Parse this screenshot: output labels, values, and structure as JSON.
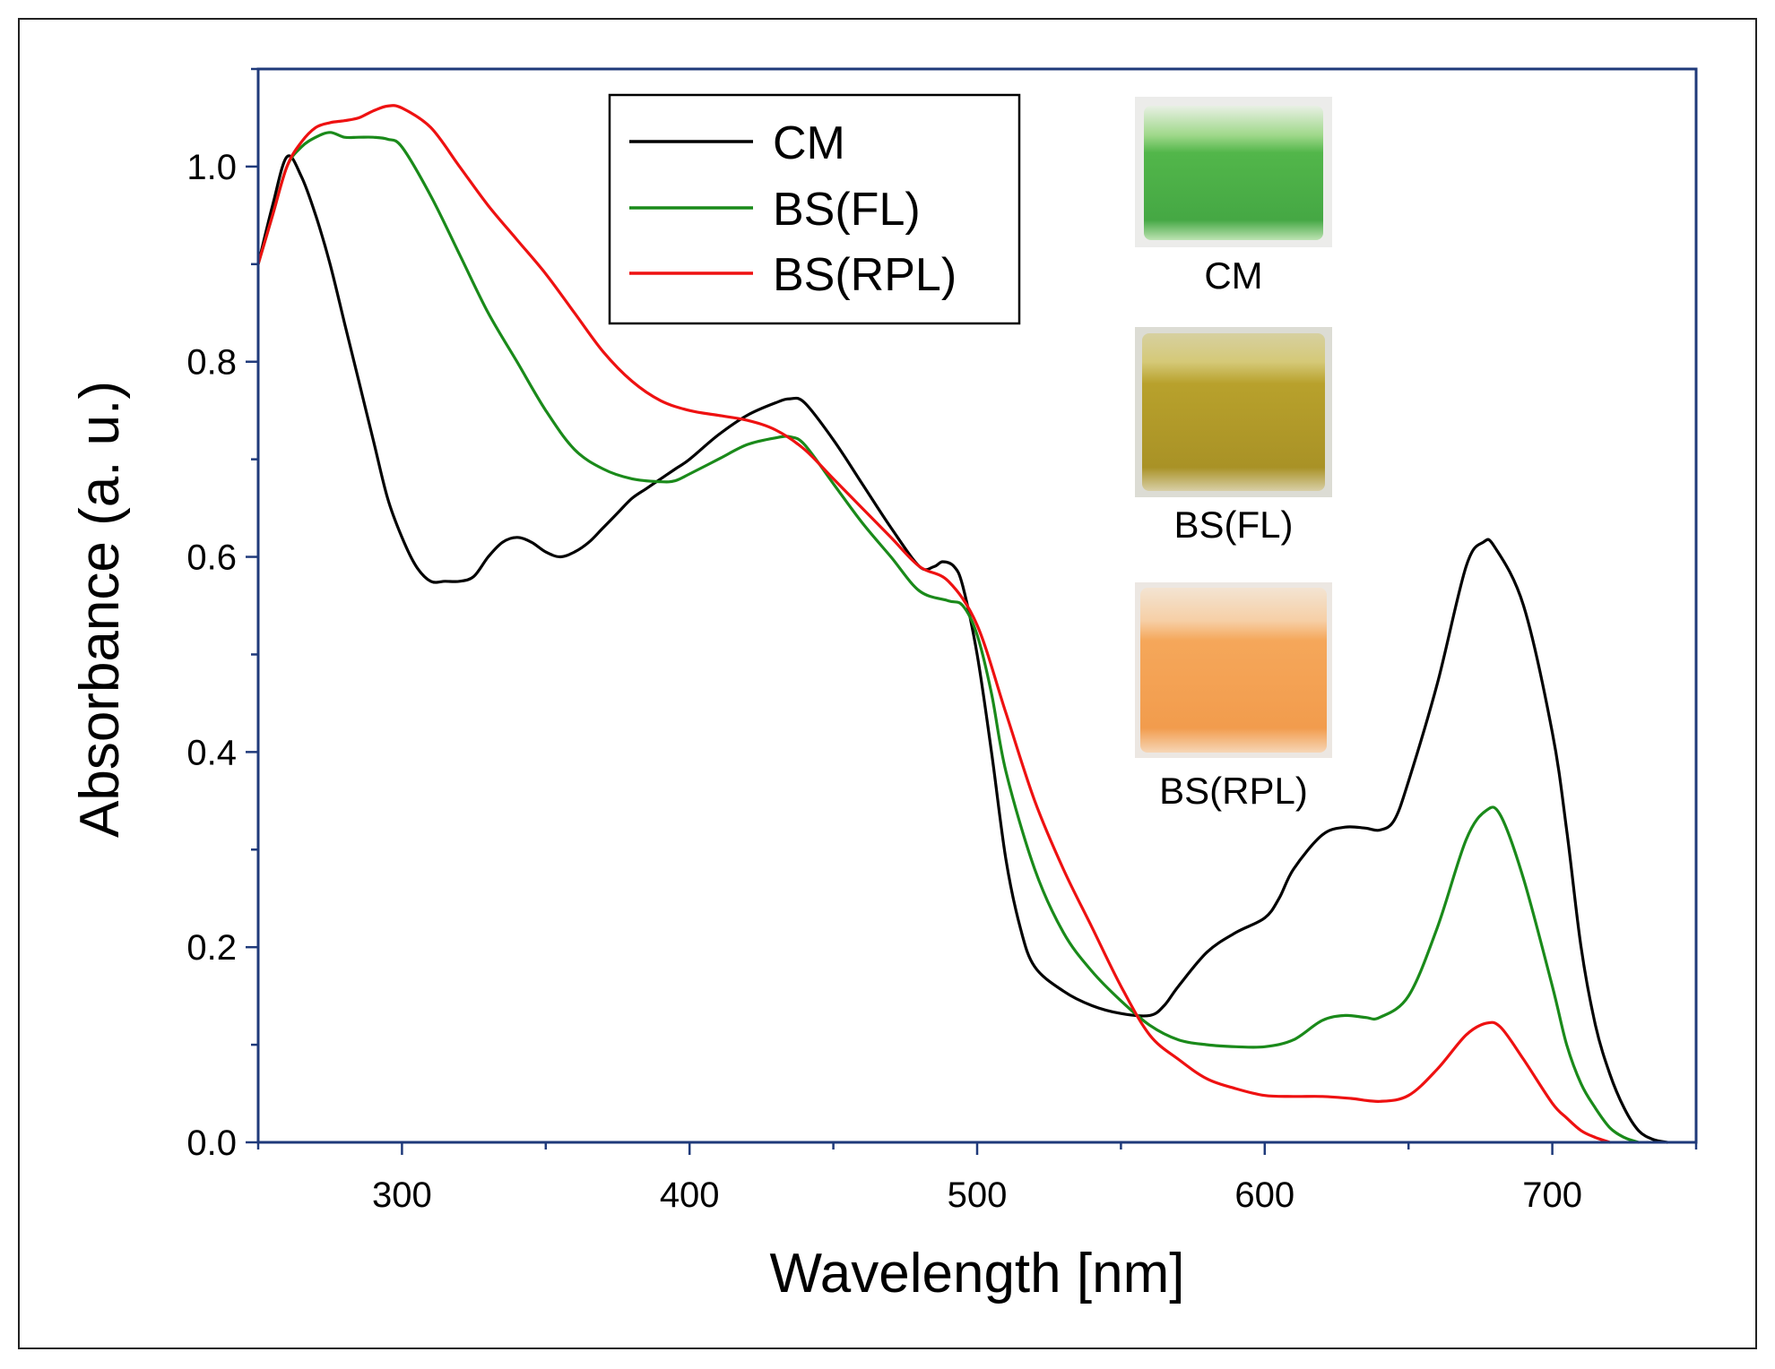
{
  "chart_data": {
    "type": "line",
    "xlabel": "Wavelength [nm]",
    "ylabel": "Absorbance (a. u.)",
    "xlim": [
      250,
      750
    ],
    "ylim": [
      0,
      1.1
    ],
    "x_ticks": [
      300,
      400,
      500,
      600,
      700
    ],
    "y_ticks": [
      0.0,
      0.2,
      0.4,
      0.6,
      0.8,
      1.0
    ],
    "x_tick_labels": [
      "300",
      "400",
      "500",
      "600",
      "700"
    ],
    "y_tick_labels": [
      "0.0",
      "0.2",
      "0.4",
      "0.6",
      "0.8",
      "1.0"
    ],
    "grid": false,
    "legend_position": "top-center",
    "series": [
      {
        "name": "CM",
        "color": "#000000",
        "points": [
          [
            250,
            0.9
          ],
          [
            255,
            0.96
          ],
          [
            260,
            1.01
          ],
          [
            265,
            0.99
          ],
          [
            270,
            0.95
          ],
          [
            275,
            0.9
          ],
          [
            280,
            0.84
          ],
          [
            285,
            0.78
          ],
          [
            290,
            0.72
          ],
          [
            295,
            0.66
          ],
          [
            300,
            0.62
          ],
          [
            305,
            0.59
          ],
          [
            310,
            0.575
          ],
          [
            315,
            0.575
          ],
          [
            320,
            0.575
          ],
          [
            325,
            0.58
          ],
          [
            330,
            0.6
          ],
          [
            335,
            0.615
          ],
          [
            340,
            0.62
          ],
          [
            345,
            0.615
          ],
          [
            350,
            0.605
          ],
          [
            355,
            0.6
          ],
          [
            360,
            0.605
          ],
          [
            365,
            0.615
          ],
          [
            370,
            0.63
          ],
          [
            375,
            0.645
          ],
          [
            380,
            0.66
          ],
          [
            385,
            0.67
          ],
          [
            390,
            0.68
          ],
          [
            395,
            0.69
          ],
          [
            400,
            0.7
          ],
          [
            410,
            0.725
          ],
          [
            420,
            0.745
          ],
          [
            430,
            0.758
          ],
          [
            435,
            0.762
          ],
          [
            440,
            0.758
          ],
          [
            450,
            0.72
          ],
          [
            460,
            0.675
          ],
          [
            470,
            0.63
          ],
          [
            480,
            0.59
          ],
          [
            485,
            0.59
          ],
          [
            488,
            0.595
          ],
          [
            492,
            0.59
          ],
          [
            495,
            0.57
          ],
          [
            500,
            0.5
          ],
          [
            505,
            0.4
          ],
          [
            510,
            0.29
          ],
          [
            515,
            0.22
          ],
          [
            520,
            0.18
          ],
          [
            530,
            0.155
          ],
          [
            540,
            0.14
          ],
          [
            550,
            0.132
          ],
          [
            560,
            0.13
          ],
          [
            565,
            0.14
          ],
          [
            570,
            0.16
          ],
          [
            580,
            0.195
          ],
          [
            590,
            0.215
          ],
          [
            600,
            0.23
          ],
          [
            605,
            0.25
          ],
          [
            610,
            0.28
          ],
          [
            620,
            0.315
          ],
          [
            628,
            0.323
          ],
          [
            635,
            0.322
          ],
          [
            640,
            0.32
          ],
          [
            645,
            0.33
          ],
          [
            650,
            0.37
          ],
          [
            660,
            0.47
          ],
          [
            670,
            0.59
          ],
          [
            676,
            0.615
          ],
          [
            680,
            0.61
          ],
          [
            690,
            0.55
          ],
          [
            700,
            0.42
          ],
          [
            705,
            0.32
          ],
          [
            710,
            0.2
          ],
          [
            715,
            0.12
          ],
          [
            720,
            0.07
          ],
          [
            725,
            0.035
          ],
          [
            730,
            0.012
          ],
          [
            735,
            0.003
          ],
          [
            740,
            0.0
          ]
        ]
      },
      {
        "name": "BS(FL)",
        "color": "#1a8a1a",
        "points": [
          [
            250,
            0.9
          ],
          [
            255,
            0.95
          ],
          [
            260,
            1.0
          ],
          [
            265,
            1.02
          ],
          [
            270,
            1.03
          ],
          [
            275,
            1.035
          ],
          [
            280,
            1.03
          ],
          [
            285,
            1.03
          ],
          [
            290,
            1.03
          ],
          [
            295,
            1.028
          ],
          [
            300,
            1.02
          ],
          [
            310,
            0.97
          ],
          [
            320,
            0.91
          ],
          [
            330,
            0.85
          ],
          [
            340,
            0.8
          ],
          [
            350,
            0.75
          ],
          [
            360,
            0.71
          ],
          [
            370,
            0.69
          ],
          [
            380,
            0.68
          ],
          [
            390,
            0.677
          ],
          [
            395,
            0.678
          ],
          [
            400,
            0.685
          ],
          [
            410,
            0.7
          ],
          [
            420,
            0.715
          ],
          [
            430,
            0.722
          ],
          [
            435,
            0.723
          ],
          [
            440,
            0.715
          ],
          [
            450,
            0.675
          ],
          [
            460,
            0.635
          ],
          [
            470,
            0.6
          ],
          [
            480,
            0.565
          ],
          [
            490,
            0.555
          ],
          [
            495,
            0.55
          ],
          [
            500,
            0.52
          ],
          [
            505,
            0.46
          ],
          [
            510,
            0.38
          ],
          [
            520,
            0.28
          ],
          [
            530,
            0.215
          ],
          [
            540,
            0.175
          ],
          [
            550,
            0.145
          ],
          [
            560,
            0.12
          ],
          [
            570,
            0.105
          ],
          [
            580,
            0.1
          ],
          [
            590,
            0.098
          ],
          [
            600,
            0.098
          ],
          [
            610,
            0.105
          ],
          [
            620,
            0.125
          ],
          [
            628,
            0.13
          ],
          [
            635,
            0.128
          ],
          [
            640,
            0.128
          ],
          [
            650,
            0.15
          ],
          [
            660,
            0.22
          ],
          [
            670,
            0.31
          ],
          [
            677,
            0.34
          ],
          [
            682,
            0.335
          ],
          [
            690,
            0.27
          ],
          [
            700,
            0.16
          ],
          [
            705,
            0.1
          ],
          [
            710,
            0.06
          ],
          [
            715,
            0.035
          ],
          [
            720,
            0.015
          ],
          [
            725,
            0.005
          ],
          [
            730,
            0.0
          ]
        ]
      },
      {
        "name": "BS(RPL)",
        "color": "#ee1111",
        "points": [
          [
            250,
            0.9
          ],
          [
            255,
            0.95
          ],
          [
            260,
            1.0
          ],
          [
            265,
            1.025
          ],
          [
            270,
            1.04
          ],
          [
            275,
            1.045
          ],
          [
            280,
            1.047
          ],
          [
            285,
            1.05
          ],
          [
            290,
            1.057
          ],
          [
            295,
            1.062
          ],
          [
            300,
            1.06
          ],
          [
            310,
            1.04
          ],
          [
            320,
            1.0
          ],
          [
            330,
            0.96
          ],
          [
            340,
            0.925
          ],
          [
            350,
            0.89
          ],
          [
            360,
            0.85
          ],
          [
            370,
            0.81
          ],
          [
            380,
            0.78
          ],
          [
            390,
            0.76
          ],
          [
            400,
            0.75
          ],
          [
            410,
            0.745
          ],
          [
            420,
            0.74
          ],
          [
            430,
            0.73
          ],
          [
            440,
            0.71
          ],
          [
            450,
            0.68
          ],
          [
            460,
            0.65
          ],
          [
            470,
            0.62
          ],
          [
            480,
            0.59
          ],
          [
            490,
            0.575
          ],
          [
            500,
            0.53
          ],
          [
            510,
            0.44
          ],
          [
            520,
            0.35
          ],
          [
            530,
            0.28
          ],
          [
            540,
            0.22
          ],
          [
            550,
            0.16
          ],
          [
            560,
            0.11
          ],
          [
            570,
            0.085
          ],
          [
            580,
            0.065
          ],
          [
            590,
            0.055
          ],
          [
            600,
            0.048
          ],
          [
            610,
            0.047
          ],
          [
            620,
            0.047
          ],
          [
            630,
            0.045
          ],
          [
            640,
            0.042
          ],
          [
            650,
            0.048
          ],
          [
            660,
            0.075
          ],
          [
            670,
            0.11
          ],
          [
            677,
            0.122
          ],
          [
            682,
            0.118
          ],
          [
            690,
            0.085
          ],
          [
            700,
            0.04
          ],
          [
            705,
            0.025
          ],
          [
            710,
            0.012
          ],
          [
            715,
            0.005
          ],
          [
            720,
            0.0
          ]
        ]
      }
    ]
  },
  "photos": [
    {
      "label": "CM",
      "liquid_color": "#4fb54a",
      "top_color": "#8fd27e",
      "bg_color": "#eeeeee"
    },
    {
      "label": "BS(FL)",
      "liquid_color": "#b6a22a",
      "top_color": "#d8c976",
      "bg_color": "#dcdcd4"
    },
    {
      "label": "BS(RPL)",
      "liquid_color": "#f4a354",
      "top_color": "#f7d0a6",
      "bg_color": "#ece7e2"
    }
  ]
}
